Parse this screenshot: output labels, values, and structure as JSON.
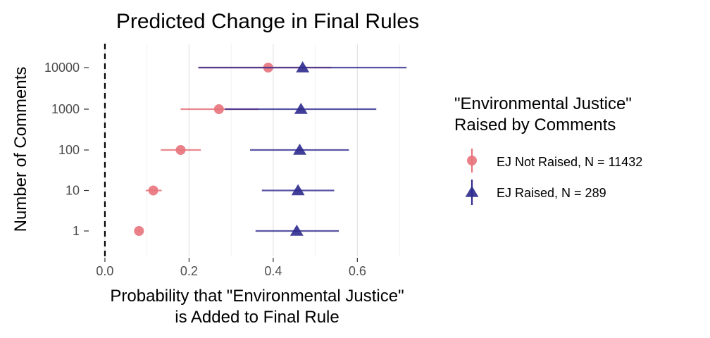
{
  "chart_data": {
    "type": "scatter",
    "title": "Predicted Change in Final Rules",
    "xlabel": [
      "Probability that \"Environmental Justice\"",
      "is Added to Final Rule"
    ],
    "ylabel": "Number of Comments",
    "xlim": [
      -0.02,
      0.73
    ],
    "x_ticks": [
      0.0,
      0.2,
      0.4,
      0.6
    ],
    "x_tick_labels": [
      "0.0",
      "0.2",
      "0.4",
      "0.6"
    ],
    "x_minor_gridlines": [
      0.1,
      0.3,
      0.5,
      0.7
    ],
    "categories": [
      "1",
      "10",
      "100",
      "1000",
      "10000"
    ],
    "reference_line": {
      "x": 0.0,
      "style": "dashed"
    },
    "grid": true,
    "legend": {
      "title": [
        "\"Environmental Justice\"",
        "Raised by Comments"
      ],
      "position": "right"
    },
    "series": [
      {
        "name": "EJ Not Raised, N = 11432",
        "color": "#E8737B",
        "marker": "circle",
        "points": [
          {
            "category": "1",
            "estimate": 0.081,
            "lower": 0.078,
            "upper": 0.084
          },
          {
            "category": "10",
            "estimate": 0.115,
            "lower": 0.097,
            "upper": 0.135
          },
          {
            "category": "100",
            "estimate": 0.18,
            "lower": 0.133,
            "upper": 0.228
          },
          {
            "category": "1000",
            "estimate": 0.271,
            "lower": 0.18,
            "upper": 0.365
          },
          {
            "category": "10000",
            "estimate": 0.388,
            "lower": 0.222,
            "upper": 0.538
          }
        ]
      },
      {
        "name": "EJ Raised, N = 289",
        "color": "#2E2A8E",
        "marker": "triangle",
        "points": [
          {
            "category": "1",
            "estimate": 0.456,
            "lower": 0.358,
            "upper": 0.556
          },
          {
            "category": "10",
            "estimate": 0.459,
            "lower": 0.373,
            "upper": 0.545
          },
          {
            "category": "100",
            "estimate": 0.463,
            "lower": 0.345,
            "upper": 0.58
          },
          {
            "category": "1000",
            "estimate": 0.466,
            "lower": 0.285,
            "upper": 0.645
          },
          {
            "category": "10000",
            "estimate": 0.47,
            "lower": 0.222,
            "upper": 0.717
          }
        ]
      }
    ]
  }
}
